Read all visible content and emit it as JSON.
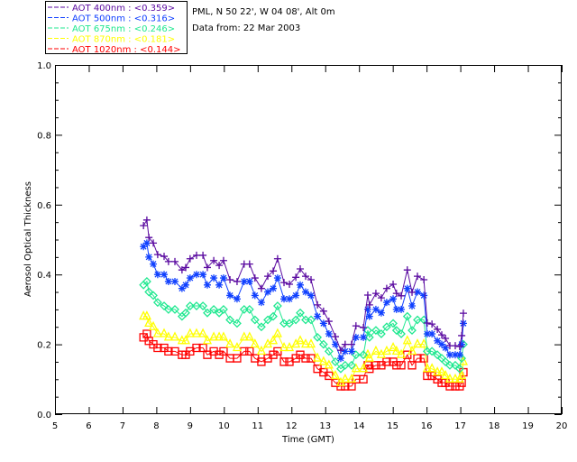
{
  "chart_data": {
    "type": "line",
    "title": "",
    "info": [
      "PML, N 50 22', W 04 08', Alt 0m",
      "Data from: 22 Mar 2003"
    ],
    "xlabel": "Time (GMT)",
    "ylabel": "Aerosol Optical Thickness",
    "xlim": [
      5,
      20
    ],
    "ylim": [
      0,
      1.0
    ],
    "xticks": [
      "5",
      "6",
      "7",
      "8",
      "9",
      "10",
      "11",
      "12",
      "13",
      "14",
      "15",
      "16",
      "17",
      "18",
      "19",
      "20"
    ],
    "yticks": [
      "0.0",
      "0.2",
      "0.4",
      "0.6",
      "0.8",
      "1.0"
    ],
    "legend_position": "top-left (outside plot)",
    "x": [
      7.62,
      7.72,
      7.78,
      7.91,
      8.04,
      8.23,
      8.36,
      8.55,
      8.76,
      8.87,
      9.0,
      9.19,
      9.38,
      9.51,
      9.7,
      9.86,
      9.99,
      10.18,
      10.39,
      10.6,
      10.76,
      10.92,
      11.11,
      11.3,
      11.46,
      11.59,
      11.78,
      11.94,
      12.13,
      12.26,
      12.42,
      12.58,
      12.77,
      12.95,
      13.11,
      13.3,
      13.46,
      13.59,
      13.78,
      13.91,
      14.13,
      14.26,
      14.31,
      14.5,
      14.66,
      14.82,
      15.01,
      15.11,
      15.25,
      15.43,
      15.57,
      15.73,
      15.92,
      16.02,
      16.16,
      16.32,
      16.45,
      16.56,
      16.69,
      16.85,
      16.98,
      17.04,
      17.09
    ],
    "series": [
      {
        "name": "AOT  400nm : <0.359>",
        "color": "#5a0aa0",
        "marker": "plus",
        "values": [
          0.54,
          0.556,
          0.506,
          0.49,
          0.457,
          0.452,
          0.437,
          0.437,
          0.413,
          0.42,
          0.445,
          0.455,
          0.455,
          0.42,
          0.44,
          0.426,
          0.44,
          0.385,
          0.38,
          0.43,
          0.43,
          0.39,
          0.36,
          0.395,
          0.41,
          0.445,
          0.377,
          0.372,
          0.392,
          0.416,
          0.395,
          0.385,
          0.313,
          0.295,
          0.266,
          0.222,
          0.183,
          0.2,
          0.2,
          0.253,
          0.248,
          0.341,
          0.313,
          0.346,
          0.333,
          0.36,
          0.372,
          0.346,
          0.339,
          0.413,
          0.349,
          0.395,
          0.385,
          0.261,
          0.258,
          0.243,
          0.227,
          0.217,
          0.196,
          0.196,
          0.194,
          0.225,
          0.289
        ]
      },
      {
        "name": "AOT  500nm : <0.316>",
        "color": "#1040ff",
        "marker": "asterisk",
        "values": [
          0.48,
          0.49,
          0.45,
          0.43,
          0.4,
          0.4,
          0.38,
          0.38,
          0.36,
          0.37,
          0.39,
          0.4,
          0.4,
          0.37,
          0.39,
          0.37,
          0.39,
          0.34,
          0.33,
          0.38,
          0.38,
          0.34,
          0.32,
          0.35,
          0.36,
          0.39,
          0.33,
          0.33,
          0.34,
          0.37,
          0.35,
          0.34,
          0.28,
          0.26,
          0.23,
          0.2,
          0.16,
          0.18,
          0.18,
          0.22,
          0.22,
          0.3,
          0.28,
          0.3,
          0.29,
          0.32,
          0.33,
          0.3,
          0.3,
          0.36,
          0.31,
          0.35,
          0.34,
          0.23,
          0.23,
          0.21,
          0.2,
          0.19,
          0.17,
          0.17,
          0.17,
          0.2,
          0.26
        ]
      },
      {
        "name": "AOT  675nm : <0.246>",
        "color": "#20e890",
        "marker": "diamond",
        "values": [
          0.37,
          0.38,
          0.35,
          0.34,
          0.32,
          0.31,
          0.3,
          0.3,
          0.28,
          0.29,
          0.31,
          0.31,
          0.31,
          0.29,
          0.3,
          0.29,
          0.3,
          0.27,
          0.26,
          0.3,
          0.3,
          0.27,
          0.25,
          0.27,
          0.28,
          0.31,
          0.26,
          0.26,
          0.27,
          0.29,
          0.27,
          0.27,
          0.22,
          0.2,
          0.18,
          0.15,
          0.13,
          0.14,
          0.14,
          0.17,
          0.17,
          0.24,
          0.22,
          0.24,
          0.23,
          0.25,
          0.26,
          0.24,
          0.23,
          0.28,
          0.24,
          0.27,
          0.27,
          0.18,
          0.18,
          0.17,
          0.16,
          0.15,
          0.14,
          0.14,
          0.13,
          0.16,
          0.2
        ]
      },
      {
        "name": "AOT  870nm : <0.181>",
        "color": "#ffff00",
        "marker": "triangle",
        "values": [
          0.28,
          0.28,
          0.26,
          0.25,
          0.23,
          0.23,
          0.22,
          0.22,
          0.21,
          0.21,
          0.23,
          0.23,
          0.23,
          0.21,
          0.22,
          0.22,
          0.22,
          0.2,
          0.19,
          0.22,
          0.22,
          0.2,
          0.18,
          0.2,
          0.21,
          0.23,
          0.19,
          0.19,
          0.2,
          0.21,
          0.2,
          0.2,
          0.16,
          0.15,
          0.14,
          0.11,
          0.09,
          0.1,
          0.1,
          0.13,
          0.13,
          0.17,
          0.16,
          0.18,
          0.17,
          0.18,
          0.19,
          0.18,
          0.17,
          0.21,
          0.18,
          0.2,
          0.2,
          0.13,
          0.13,
          0.12,
          0.12,
          0.11,
          0.1,
          0.1,
          0.1,
          0.11,
          0.15
        ]
      },
      {
        "name": "AOT 1020nm : <0.144>",
        "color": "#ff0000",
        "marker": "square",
        "values": [
          0.22,
          0.23,
          0.21,
          0.2,
          0.19,
          0.19,
          0.18,
          0.18,
          0.17,
          0.17,
          0.18,
          0.19,
          0.19,
          0.17,
          0.18,
          0.17,
          0.18,
          0.16,
          0.16,
          0.18,
          0.18,
          0.16,
          0.15,
          0.16,
          0.17,
          0.18,
          0.15,
          0.15,
          0.16,
          0.17,
          0.16,
          0.16,
          0.13,
          0.12,
          0.11,
          0.09,
          0.08,
          0.08,
          0.08,
          0.1,
          0.1,
          0.14,
          0.13,
          0.14,
          0.14,
          0.15,
          0.15,
          0.14,
          0.14,
          0.17,
          0.14,
          0.16,
          0.16,
          0.11,
          0.11,
          0.1,
          0.09,
          0.09,
          0.08,
          0.08,
          0.08,
          0.09,
          0.12
        ]
      }
    ]
  }
}
